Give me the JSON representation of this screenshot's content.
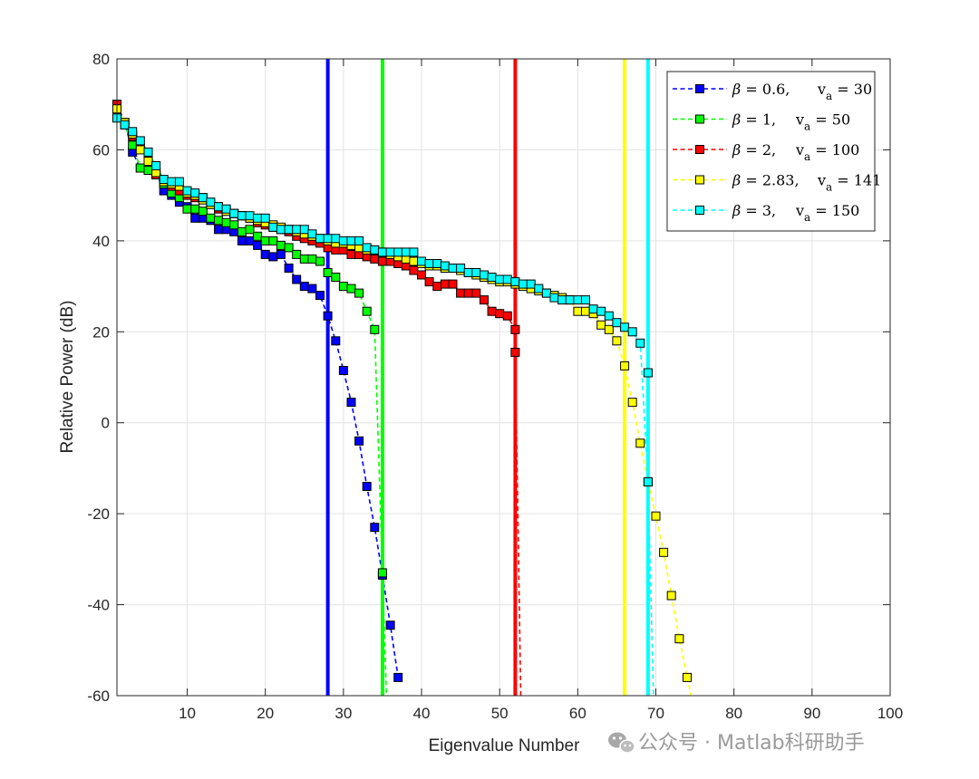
{
  "chart_data": {
    "type": "line",
    "xlabel": "Eigenvalue Number",
    "ylabel": "Relative Power (dB)",
    "xlim": [
      1,
      100
    ],
    "ylim": [
      -60,
      80
    ],
    "xticks": [
      10,
      20,
      30,
      40,
      50,
      60,
      70,
      80,
      90,
      100
    ],
    "yticks": [
      80,
      60,
      40,
      20,
      0,
      -20,
      -40,
      -60
    ],
    "grid": true,
    "legend_position": "top-right",
    "series": [
      {
        "name": "β = 0.6, v_a = 30",
        "legend_parts": {
          "greek": "β",
          "beta": " = 0.6,",
          "v": "v",
          "sub": "a",
          "va": " = 30"
        },
        "color": "#0000ff",
        "x": [
          1,
          2,
          3,
          4,
          5,
          6,
          7,
          8,
          9,
          10,
          11,
          12,
          13,
          14,
          15,
          16,
          17,
          18,
          19,
          20,
          21,
          22,
          23,
          24,
          25,
          26,
          27,
          28,
          29,
          30,
          31,
          32,
          33,
          34,
          35,
          36,
          37
        ],
        "y": [
          70,
          66,
          59.5,
          56,
          55.5,
          55,
          51,
          50,
          48.5,
          47.5,
          45,
          45,
          44.5,
          42.5,
          42.5,
          42,
          40,
          40,
          39,
          37,
          36.5,
          37,
          34,
          31.5,
          30,
          29.5,
          28,
          23.5,
          18,
          11.5,
          4.5,
          -4,
          -14,
          -23,
          -33.5,
          -44.5,
          -56
        ]
      },
      {
        "name": "β = 1, v_a = 50",
        "legend_parts": {
          "greek": "β",
          "beta": " = 1,",
          "v": "v",
          "sub": "a",
          "va": " = 50"
        },
        "color": "#00ff00",
        "x": [
          1,
          2,
          3,
          4,
          5,
          6,
          7,
          8,
          9,
          10,
          11,
          12,
          13,
          14,
          15,
          16,
          17,
          18,
          19,
          20,
          21,
          22,
          23,
          24,
          25,
          26,
          27,
          28,
          29,
          30,
          31,
          32,
          33,
          34,
          35
        ],
        "y": [
          69,
          65.5,
          61,
          56,
          55.5,
          54.5,
          52.5,
          50.5,
          49.5,
          47,
          47,
          46.5,
          45,
          44.5,
          44,
          43.5,
          42,
          42.5,
          41,
          40,
          40,
          39,
          38.5,
          37,
          36,
          36,
          35.5,
          33,
          32,
          30,
          29.5,
          28.5,
          24.5,
          20.5,
          -33
        ],
        "trail": [
          [
            35,
            -33
          ],
          [
            35.5,
            -60
          ]
        ]
      },
      {
        "name": "β = 2, v_a = 100",
        "legend_parts": {
          "greek": "β",
          "beta": " = 2,",
          "v": "v",
          "sub": "a",
          "va": " = 100"
        },
        "color": "#ff0000",
        "x": [
          1,
          2,
          3,
          4,
          5,
          6,
          7,
          8,
          9,
          10,
          11,
          12,
          13,
          14,
          15,
          16,
          17,
          18,
          19,
          20,
          21,
          22,
          23,
          24,
          25,
          26,
          27,
          28,
          29,
          30,
          31,
          32,
          33,
          34,
          35,
          36,
          37,
          38,
          39,
          40,
          41,
          42,
          43,
          44,
          45,
          46,
          47,
          48,
          49,
          50,
          51,
          52
        ],
        "y": [
          70,
          66,
          63,
          60.5,
          58,
          54.5,
          53,
          52,
          51,
          50,
          49.5,
          49.5,
          48,
          47,
          46.5,
          46,
          45.5,
          45,
          44,
          43.5,
          43,
          42.5,
          42,
          41,
          40.5,
          40,
          39.5,
          38.5,
          38,
          38,
          37,
          37,
          36.5,
          36,
          35.5,
          35.5,
          35,
          34.5,
          33.5,
          32.5,
          31,
          30,
          30.5,
          30.5,
          28.5,
          28.5,
          28.5,
          27,
          24.5,
          24,
          23.5,
          20.5
        ],
        "tail_x": [
          52
        ],
        "tail_y": [
          15.5
        ],
        "trail": [
          [
            52,
            15.5
          ],
          [
            52.7,
            -60
          ]
        ]
      },
      {
        "name": "β = 2.83, v_a = 141",
        "legend_parts": {
          "greek": "β",
          "beta": " = 2.83,",
          "v": "v",
          "sub": "a",
          "va": " = 141"
        },
        "color": "#ffff00",
        "x": [
          1,
          2,
          3,
          4,
          5,
          6,
          7,
          8,
          9,
          10,
          11,
          12,
          13,
          14,
          15,
          16,
          17,
          18,
          19,
          20,
          21,
          22,
          23,
          24,
          25,
          26,
          27,
          28,
          29,
          30,
          31,
          32,
          33,
          34,
          35,
          36,
          37,
          38,
          39,
          40,
          41,
          42,
          43,
          44,
          45,
          46,
          47,
          48,
          49,
          50,
          51,
          52,
          53,
          54,
          55,
          56,
          57,
          58,
          59,
          60,
          61,
          62,
          63,
          64,
          65,
          66,
          67,
          68,
          69,
          70,
          71,
          72,
          73,
          74
        ],
        "y": [
          69,
          66,
          63.5,
          60,
          57.5,
          55,
          53,
          52.5,
          52,
          50.5,
          50,
          49,
          48,
          47.5,
          46.5,
          46,
          45.5,
          45,
          44.5,
          44,
          43.5,
          43,
          42.5,
          42,
          41.5,
          41,
          40.5,
          40,
          39.5,
          39.5,
          39,
          38.5,
          38,
          38,
          37.5,
          37,
          36.5,
          36,
          35.5,
          35,
          34.5,
          34.5,
          34,
          34,
          33.5,
          33,
          32.5,
          32,
          31.5,
          31,
          31,
          30.5,
          30,
          29.5,
          29,
          28.5,
          28,
          27.5,
          27,
          24.5,
          24.5,
          24,
          21.5,
          20.5,
          18,
          12.5,
          4.5,
          -4.5,
          -13,
          -20.5,
          -28.5,
          -38,
          -47.5,
          -56
        ],
        "trail": [
          [
            74,
            -56
          ],
          [
            74.5,
            -60
          ]
        ]
      },
      {
        "name": "β = 3, v_a = 150",
        "legend_parts": {
          "greek": "β",
          "beta": " = 3,",
          "v": "v",
          "sub": "a",
          "va": " = 150"
        },
        "color": "#00ffff",
        "x": [
          1,
          2,
          3,
          4,
          5,
          6,
          7,
          8,
          9,
          10,
          11,
          12,
          13,
          14,
          15,
          16,
          17,
          18,
          19,
          20,
          21,
          22,
          23,
          24,
          25,
          26,
          27,
          28,
          29,
          30,
          31,
          32,
          33,
          34,
          35,
          36,
          37,
          38,
          39,
          40,
          41,
          42,
          43,
          44,
          45,
          46,
          47,
          48,
          49,
          50,
          51,
          52,
          53,
          54,
          55,
          56,
          57,
          58,
          59,
          60,
          61,
          62,
          63,
          64,
          65,
          66,
          67,
          68,
          69
        ],
        "y": [
          67,
          65.5,
          64,
          62,
          59.5,
          56.5,
          53.5,
          53,
          53,
          51,
          50.5,
          49.5,
          48.5,
          47.5,
          47,
          46,
          45.5,
          45.5,
          45,
          45,
          43,
          42.5,
          42.5,
          42.5,
          42.5,
          41.5,
          40.5,
          40.5,
          40.5,
          40,
          40,
          40,
          38.5,
          38,
          37.5,
          37.5,
          37.5,
          37.5,
          37.5,
          35.5,
          35,
          35,
          34.5,
          34,
          34,
          33,
          33,
          32.5,
          32,
          31.5,
          31.5,
          31,
          30.5,
          30.5,
          29.5,
          28.5,
          27.5,
          27,
          27,
          27,
          27,
          25,
          24.5,
          23.5,
          22,
          21,
          20,
          17.5,
          -13
        ],
        "tail_x": [
          69
        ],
        "tail_y": [
          11
        ],
        "trail": [
          [
            69,
            -13
          ],
          [
            69.7,
            -60
          ]
        ]
      }
    ],
    "vertical_lines": [
      {
        "x": 28,
        "color": "#0000ff"
      },
      {
        "x": 35,
        "color": "#00ff00"
      },
      {
        "x": 52,
        "color": "#ff0000"
      },
      {
        "x": 66,
        "color": "#ffff00"
      },
      {
        "x": 69,
        "color": "#00ffff"
      }
    ]
  },
  "watermark": {
    "icon": "wechat-icon",
    "text": "公众号 · Matlab科研助手"
  }
}
